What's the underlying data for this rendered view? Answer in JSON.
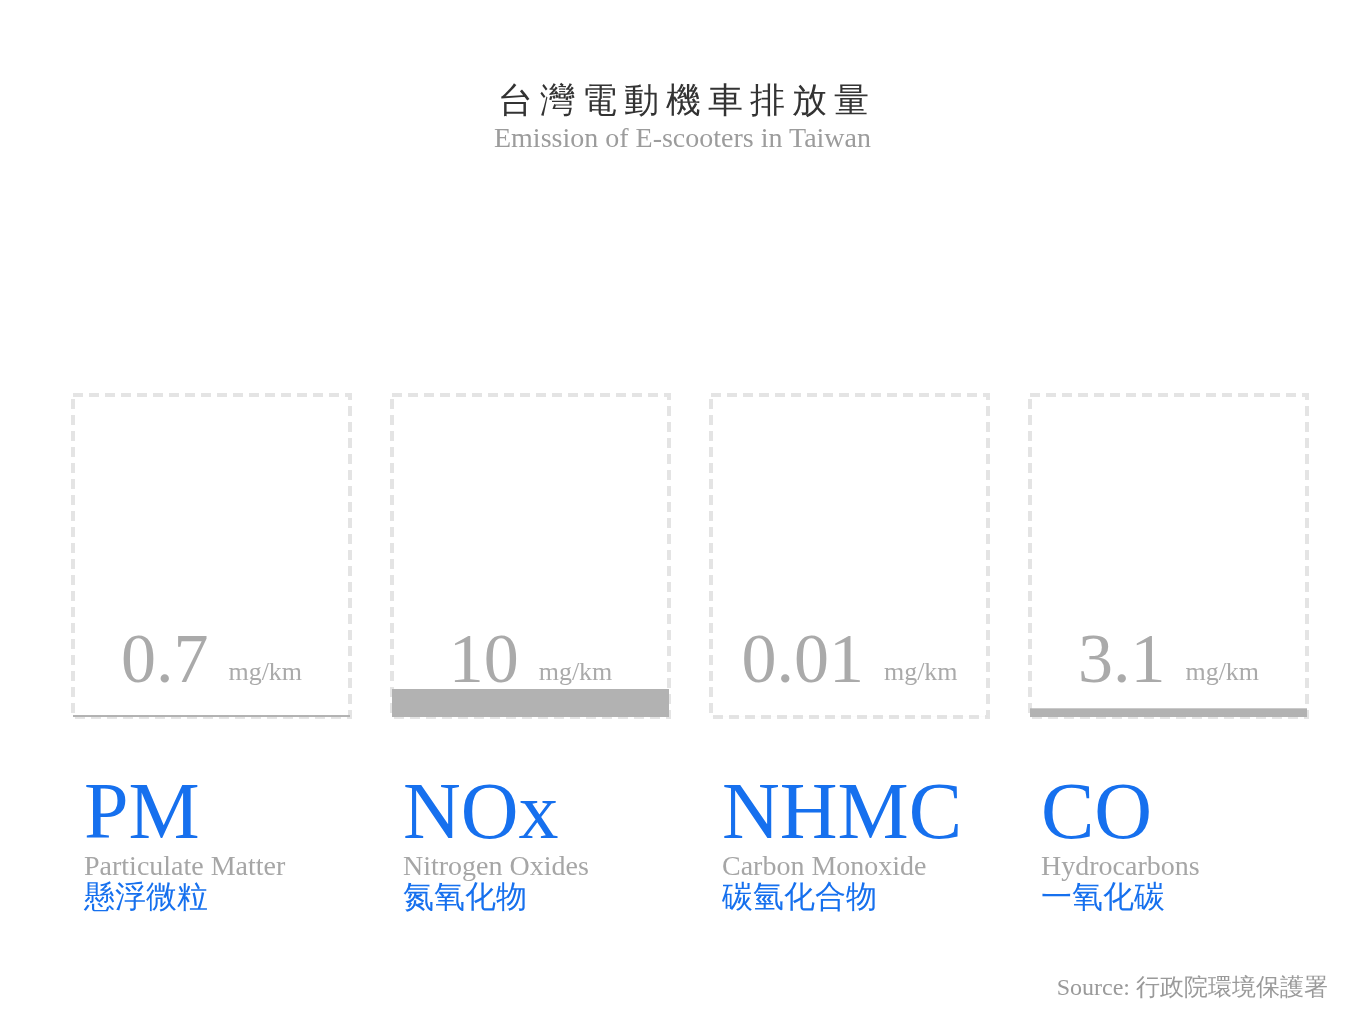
{
  "chart_data": {
    "type": "bar",
    "title": "台灣電動機車排放量",
    "subtitle": "Emission of E-scooters in Taiwan",
    "categories": [
      "PM\nParticulate Matter\n懸浮微粒",
      "NOx\nNitrogen Oxides\n氮氧化物",
      "NHMC\nCarbon Monoxide\n碳氫化合物",
      "CO\nHydrocarbons\n一氧化碳"
    ],
    "values": [
      0.7,
      10,
      0.01,
      3.1
    ],
    "color": "#b2b2b2",
    "data_labels": true,
    "ylabel": "mg/km",
    "annotations": [
      "Source: 行政院環境保護署"
    ]
  }
}
